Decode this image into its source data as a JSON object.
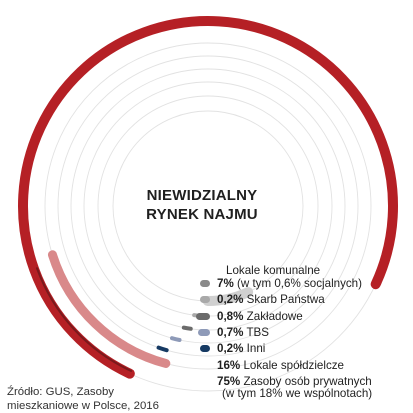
{
  "title": {
    "line1": "NIEWIDZIALNY",
    "line2": "RYNEK NAJMU"
  },
  "legend_heading": "Lokale komunalne",
  "source": {
    "line1": "Źródło: GUS, Zasoby",
    "line2": "mieszkaniowe w Polsce, 2016"
  },
  "chart_data": {
    "type": "radial-bar",
    "title": "NIEWIDZIALNY RYNEK NAJMU",
    "unit": "%",
    "series": [
      {
        "name": "Zasoby osób prywatnych",
        "value": 75,
        "pct_label": "75%",
        "note": "(w tym 18% we wspólnotach)",
        "color": "#b52025"
      },
      {
        "name": "Lokale spółdzielcze",
        "value": 16,
        "pct_label": "16%",
        "color": "#d9898a"
      },
      {
        "name": "Inni",
        "value": 0.2,
        "pct_label": "0,2%",
        "color": "#163a63"
      },
      {
        "name": "TBS",
        "value": 0.7,
        "pct_label": "0,7%",
        "color": "#8e9ab8"
      },
      {
        "name": "Zakładowe",
        "value": 0.8,
        "pct_label": "0,8%",
        "color": "#6b6b6b"
      },
      {
        "name": "Skarb Państwa",
        "value": 0.2,
        "pct_label": "0,2%",
        "color": "#a9a9a9"
      },
      {
        "name": "Lokale komunalne",
        "value": 7,
        "pct_label": "7%",
        "note": "(w tym 0,6% socjalnych)",
        "color": "#d0d0d0"
      }
    ]
  }
}
